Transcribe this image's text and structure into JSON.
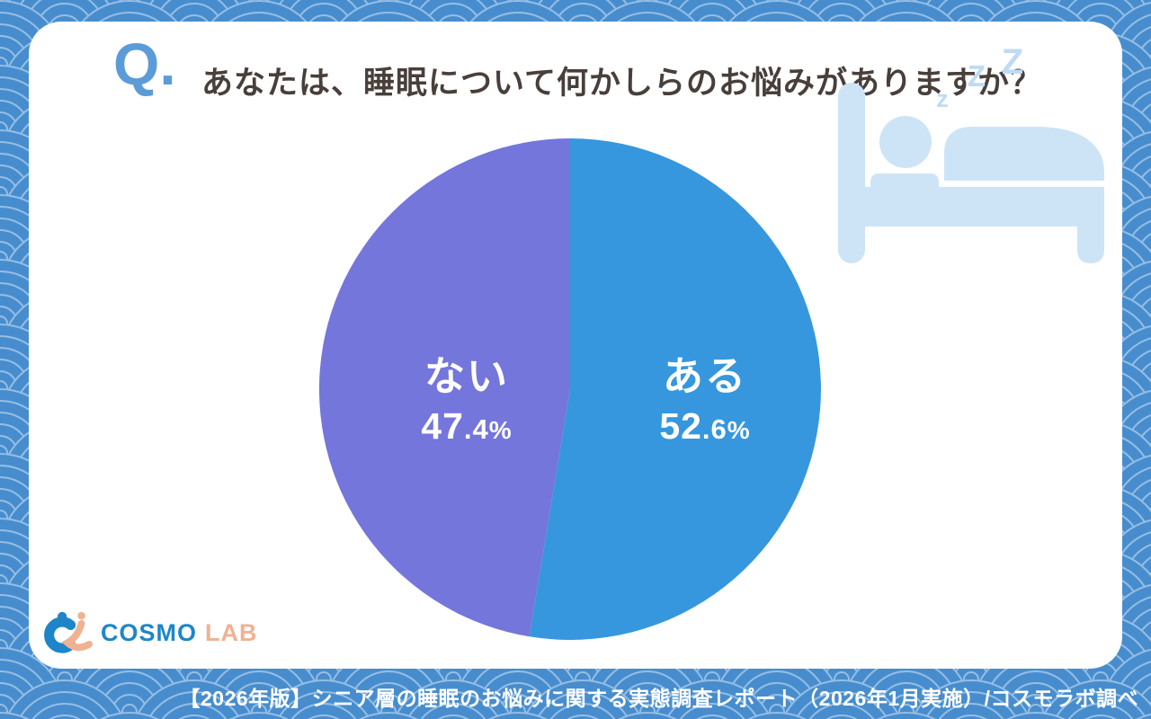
{
  "question": {
    "badge": "Q.",
    "text": "あなたは、睡眠について何かしらのお悩みがありますか？"
  },
  "chart_data": {
    "type": "pie",
    "title": "あなたは、睡眠について何かしらのお悩みがありますか？",
    "unit": "%",
    "start_angle_deg": 0,
    "direction": "clockwise",
    "labels_inside": true,
    "legend": "none",
    "slices": [
      {
        "key": "aru",
        "label": "ある",
        "value": 52.6,
        "color": "#3697DE"
      },
      {
        "key": "nai",
        "label": "ない",
        "value": 47.4,
        "color": "#7476DC"
      }
    ]
  },
  "decoration": {
    "zzz": [
      "Z",
      "Z",
      "z"
    ]
  },
  "logo": {
    "brand": "COSMO",
    "suffix": "LAB"
  },
  "footer": {
    "text": "【2026年版】シニア層の睡眠のお悩みに関する実態調査レポート（2026年1月実施）/コスモラボ調べ"
  },
  "theme": {
    "background_blue": "#478DCE",
    "wave_line": "#95BEE5",
    "card_white": "#FFFFFF",
    "accent_blue": "#5B9CD8",
    "title_text": "#483F3B",
    "pie_blue": "#3697DE",
    "pie_purple": "#7476DC",
    "bed_icon": "#CDE4F6",
    "zzz_color": "#BFDBF4",
    "logo_blue": "#1E86C8",
    "logo_peach": "#F0B292"
  }
}
